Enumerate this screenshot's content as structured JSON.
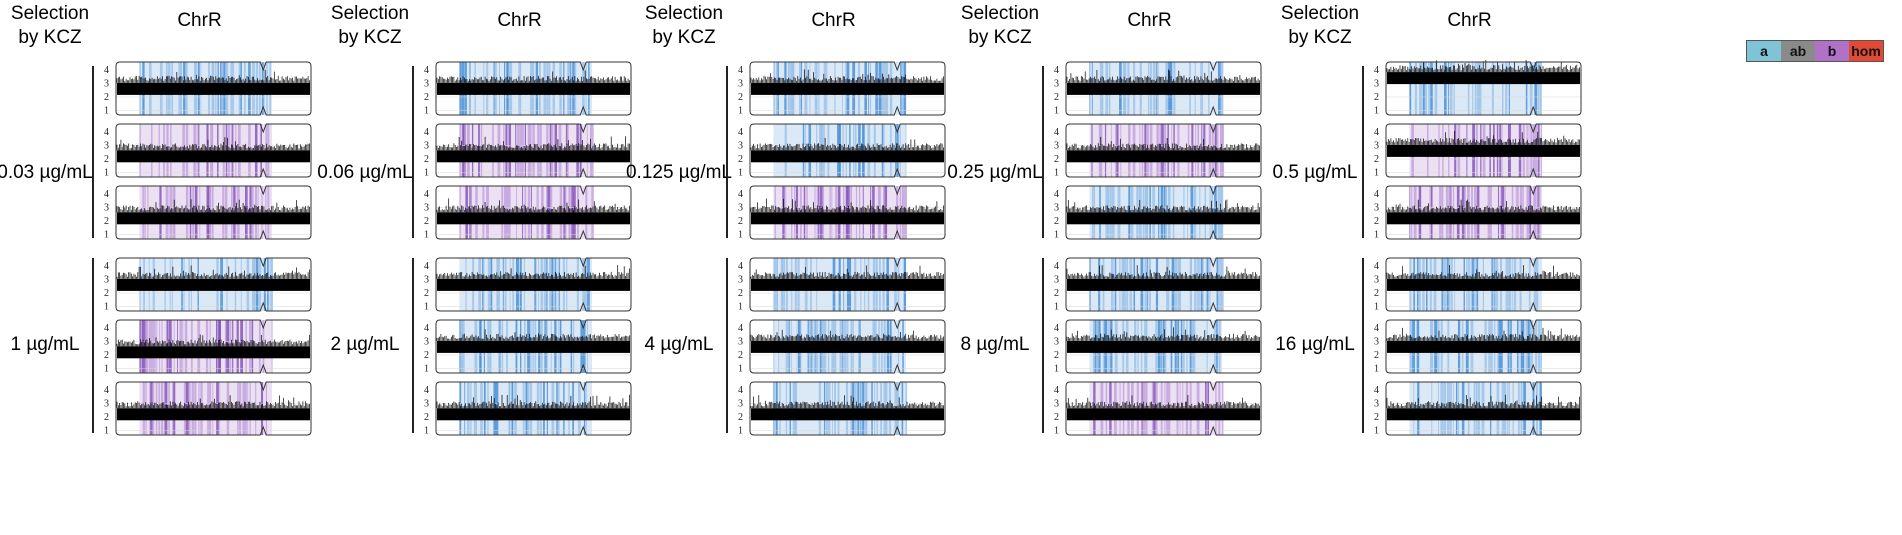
{
  "column_header": "Selection\nby KCZ",
  "chromosome_label": "ChrR",
  "legend": [
    {
      "label": "a",
      "color": "#7fc4d6"
    },
    {
      "label": "ab",
      "color": "#8a8a8a"
    },
    {
      "label": "b",
      "color": "#b072c9"
    },
    {
      "label": "hom",
      "color": "#e24a36"
    }
  ],
  "y_ticks": [
    "4",
    "3",
    "2",
    "1"
  ],
  "colors": {
    "blue_light": "#dbe9f7",
    "blue_mid": "#9cc2e8",
    "blue_dark": "#4a8fd6",
    "purple_light": "#ece0f3",
    "purple_mid": "#c3a3dd",
    "purple_dark": "#8657b8",
    "signal": "#000000"
  },
  "concentrations": [
    {
      "label": "0.03 µg/mL",
      "tracks": [
        {
          "hap": "blue",
          "cn": 2.6
        },
        {
          "hap": "purple",
          "cn": 2.2
        },
        {
          "hap": "purple",
          "cn": 2.2
        }
      ]
    },
    {
      "label": "0.06 µg/mL",
      "tracks": [
        {
          "hap": "blue",
          "cn": 2.6
        },
        {
          "hap": "purple",
          "cn": 2.2
        },
        {
          "hap": "purple",
          "cn": 2.2
        }
      ]
    },
    {
      "label": "0.125 µg/mL",
      "tracks": [
        {
          "hap": "blue",
          "cn": 2.6
        },
        {
          "hap": "blue",
          "cn": 2.2
        },
        {
          "hap": "purple",
          "cn": 2.2
        }
      ]
    },
    {
      "label": "0.25 µg/mL",
      "tracks": [
        {
          "hap": "blue",
          "cn": 2.6
        },
        {
          "hap": "purple",
          "cn": 2.2
        },
        {
          "hap": "blue",
          "cn": 2.2
        }
      ]
    },
    {
      "label": "0.5 µg/mL",
      "tracks": [
        {
          "hap": "blue",
          "cn": 3.4
        },
        {
          "hap": "purple",
          "cn": 2.6
        },
        {
          "hap": "purple",
          "cn": 2.2
        }
      ]
    },
    {
      "label": "1 µg/mL",
      "tracks": [
        {
          "hap": "blue",
          "cn": 2.6
        },
        {
          "hap": "purple",
          "cn": 2.2
        },
        {
          "hap": "purple",
          "cn": 2.2
        }
      ]
    },
    {
      "label": "2 µg/mL",
      "tracks": [
        {
          "hap": "blue",
          "cn": 2.6
        },
        {
          "hap": "blue",
          "cn": 2.6
        },
        {
          "hap": "blue",
          "cn": 2.2
        }
      ]
    },
    {
      "label": "4 µg/mL",
      "tracks": [
        {
          "hap": "blue",
          "cn": 2.6
        },
        {
          "hap": "blue",
          "cn": 2.6
        },
        {
          "hap": "blue",
          "cn": 2.2
        }
      ]
    },
    {
      "label": "8 µg/mL",
      "tracks": [
        {
          "hap": "blue",
          "cn": 2.6
        },
        {
          "hap": "blue",
          "cn": 2.6
        },
        {
          "hap": "purple",
          "cn": 2.2
        }
      ]
    },
    {
      "label": "16 µg/mL",
      "tracks": [
        {
          "hap": "blue",
          "cn": 2.6
        },
        {
          "hap": "blue",
          "cn": 2.6
        },
        {
          "hap": "blue",
          "cn": 2.2
        }
      ]
    }
  ]
}
